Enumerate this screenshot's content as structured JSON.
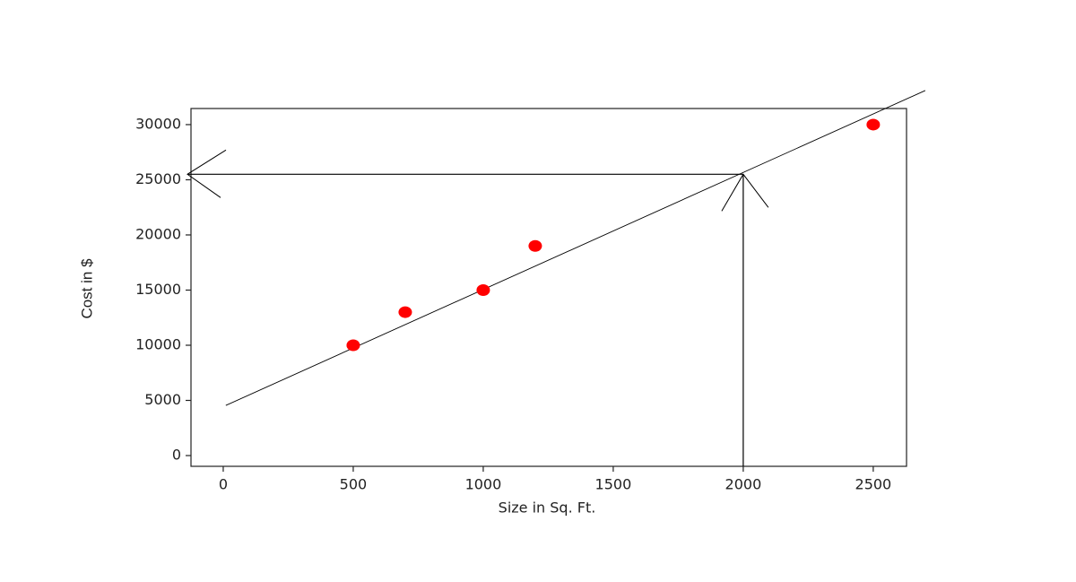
{
  "chart_data": {
    "type": "scatter",
    "x_label": "Size in Sq. Ft.",
    "y_label": "Cost in $",
    "x": [
      500,
      700,
      1000,
      1200,
      2500
    ],
    "values": [
      10000,
      13000,
      15000,
      19000,
      30000
    ],
    "color": "#ff0000",
    "fit_line": {
      "x": [
        10,
        2700
      ],
      "values": [
        4550,
        33090
      ],
      "color": "#000000"
    },
    "prediction": {
      "x": 2000,
      "value": 25500
    },
    "xlim": [
      -124,
      2628
    ],
    "xticks": [
      0,
      500,
      1000,
      1500,
      2000,
      2500
    ],
    "ylim": [
      -975,
      31460
    ],
    "yticks": [
      0,
      5000,
      10000,
      15000,
      20000,
      25000,
      30000
    ],
    "grid": false
  }
}
